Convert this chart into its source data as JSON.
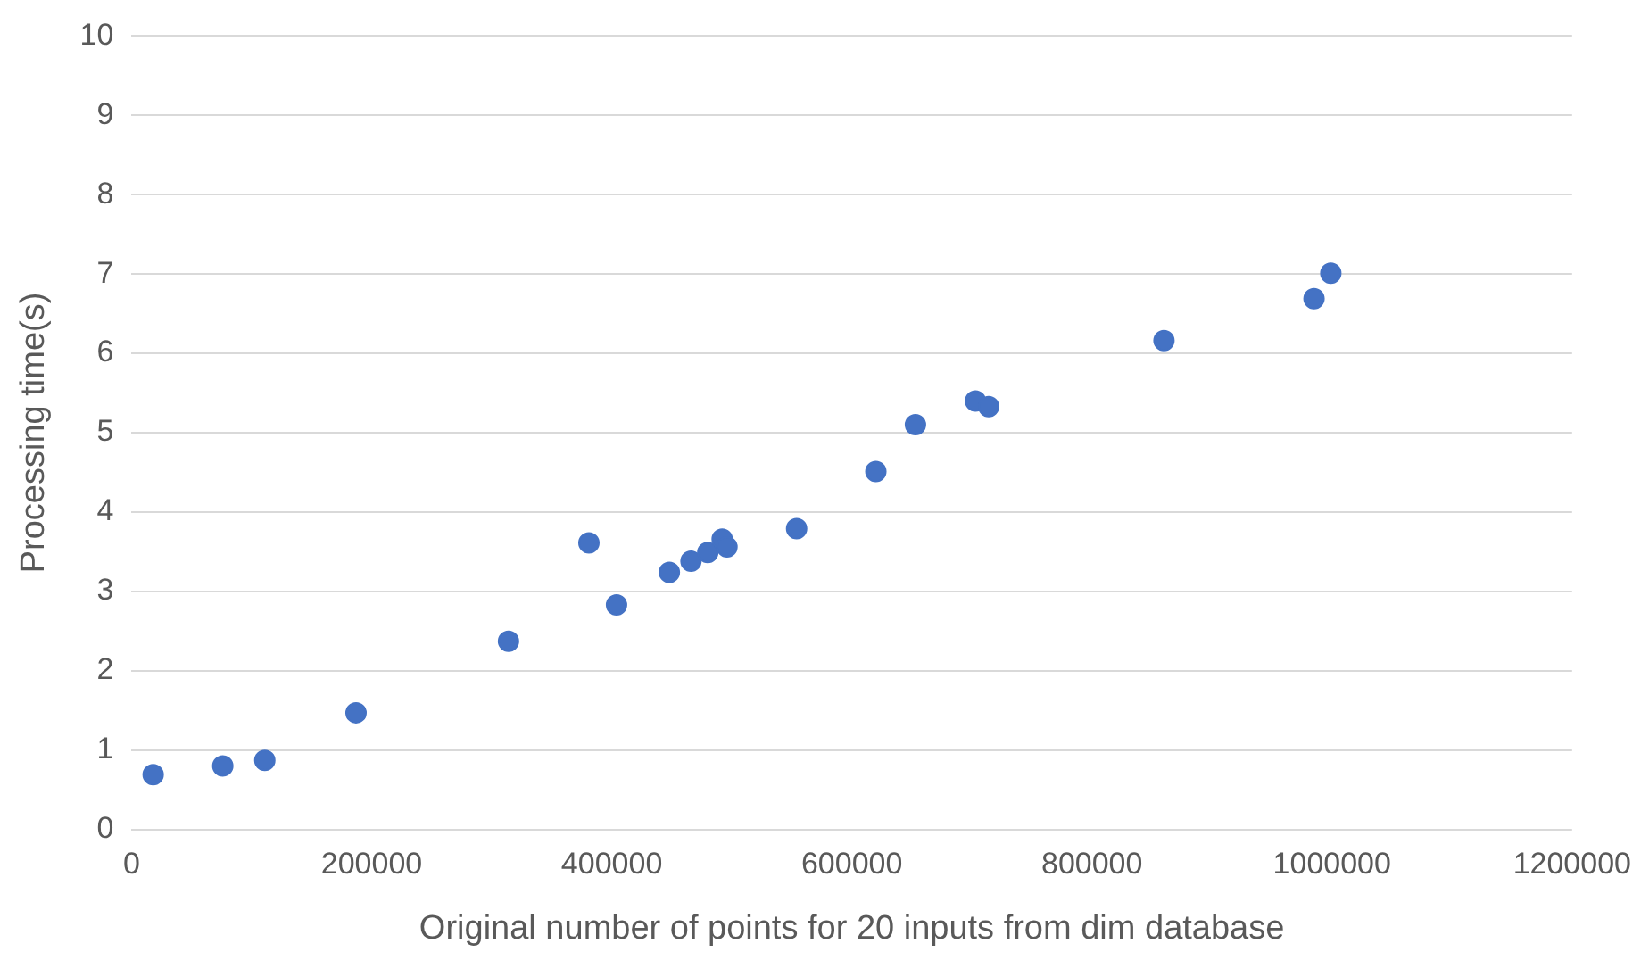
{
  "chart_data": {
    "type": "scatter",
    "xlabel": "Original number of points for 20 inputs from dim database",
    "ylabel": "Processing time(s)",
    "x": [
      18000,
      76000,
      111000,
      187000,
      314000,
      381000,
      404000,
      448000,
      466000,
      480000,
      492000,
      496000,
      554000,
      620000,
      653000,
      703000,
      714000,
      860000,
      985000,
      999000
    ],
    "series": [
      {
        "color": "#4472c4",
        "values": [
          0.69,
          0.8,
          0.87,
          1.47,
          2.37,
          3.61,
          2.83,
          3.24,
          3.38,
          3.49,
          3.66,
          3.56,
          3.79,
          4.51,
          5.1,
          5.4,
          5.33,
          6.16,
          6.69,
          7.01
        ]
      }
    ],
    "xlim": [
      0,
      1200000
    ],
    "xticks": [
      0,
      200000,
      400000,
      600000,
      800000,
      1000000,
      1200000
    ],
    "ylim": [
      0,
      10
    ],
    "yticks": [
      0,
      1,
      2,
      3,
      4,
      5,
      6,
      7,
      8,
      9,
      10
    ],
    "grid": "y",
    "legend": false,
    "marker": "circle"
  }
}
